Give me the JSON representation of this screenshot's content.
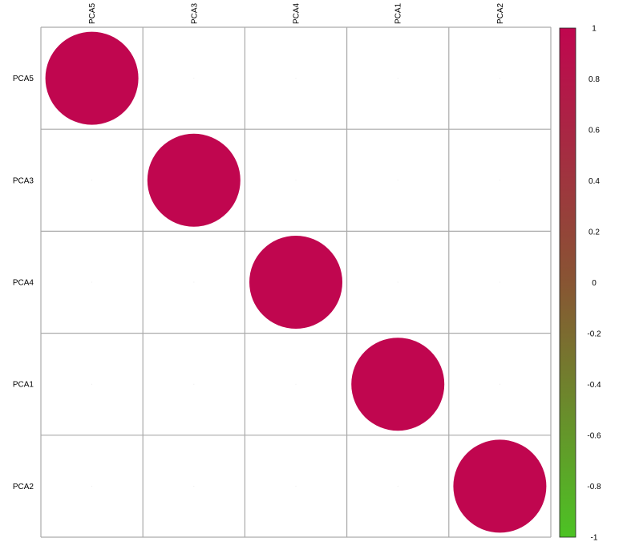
{
  "chart_data": {
    "type": "heatmap",
    "style": "circle correlation matrix",
    "variables": [
      "PCA5",
      "PCA3",
      "PCA4",
      "PCA1",
      "PCA2"
    ],
    "row_labels": [
      "PCA5",
      "PCA3",
      "PCA4",
      "PCA1",
      "PCA2"
    ],
    "column_labels": [
      "PCA5",
      "PCA3",
      "PCA4",
      "PCA1",
      "PCA2"
    ],
    "matrix": [
      [
        1,
        0,
        0,
        0,
        0
      ],
      [
        0,
        1,
        0,
        0,
        0
      ],
      [
        0,
        0,
        1,
        0,
        0
      ],
      [
        0,
        0,
        0,
        1,
        0
      ],
      [
        0,
        0,
        0,
        0,
        1
      ]
    ],
    "colorbar": {
      "range": [
        -1,
        1
      ],
      "ticks": [
        "1",
        "0.8",
        "0.6",
        "0.4",
        "0.2",
        "0",
        "-0.2",
        "-0.4",
        "-0.6",
        "-0.8",
        "-1"
      ],
      "colors": {
        "high": "#c0064f",
        "mid": "#885533",
        "low": "#4cc324"
      }
    },
    "grid": true,
    "grid_color": "#aaaaaa",
    "legend_position": "right"
  }
}
